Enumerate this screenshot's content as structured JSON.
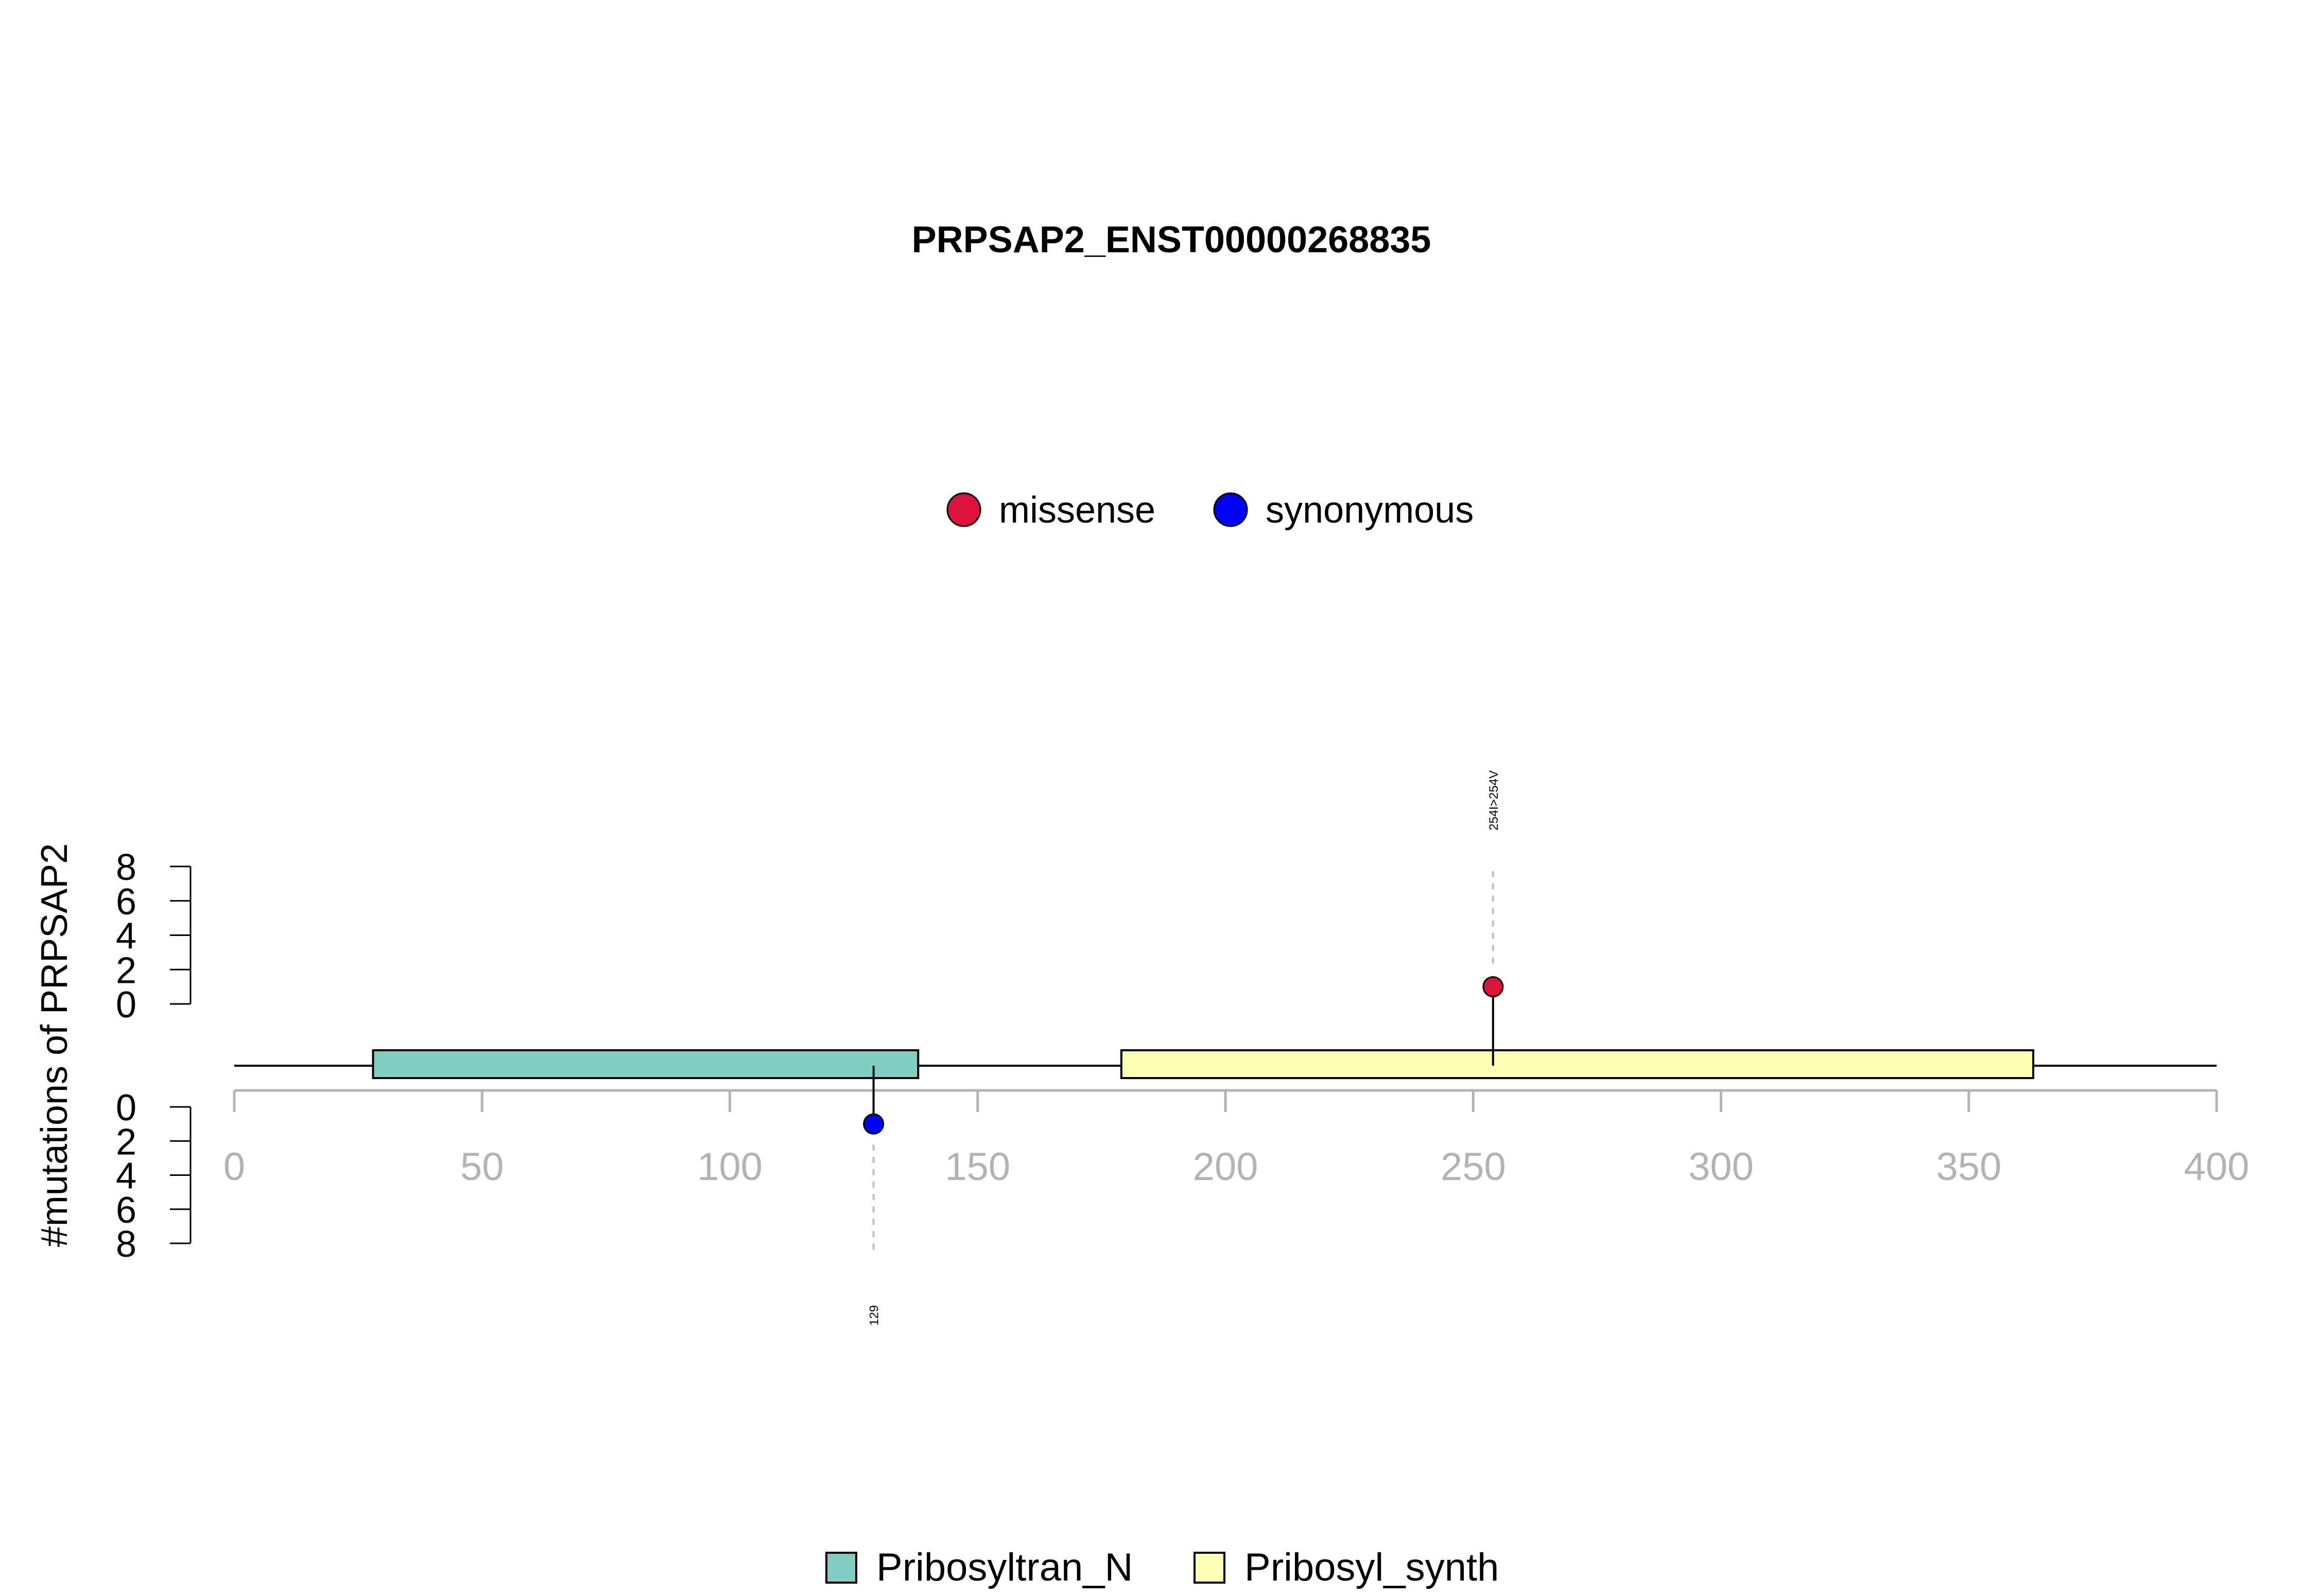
{
  "chart_data": {
    "type": "lollipop",
    "title": "PRPSAP2_ENST00000268835",
    "ylabel": "#mutations of PRPSAP2",
    "x_range": [
      0,
      400
    ],
    "x_ticks": [
      "0",
      "50",
      "100",
      "150",
      "200",
      "250",
      "300",
      "350",
      "400"
    ],
    "y_upper_ticks": [
      "0",
      "2",
      "4",
      "6",
      "8"
    ],
    "y_lower_ticks": [
      "0",
      "2",
      "4",
      "6",
      "8"
    ],
    "y_range": [
      0,
      8
    ],
    "protein_length": 400,
    "mutation_legend": [
      {
        "label": "missense",
        "color": "#dc143c"
      },
      {
        "label": "synonymous",
        "color": "#0000ff"
      }
    ],
    "domain_legend": [
      {
        "label": "Pribosyltran_N",
        "color": "#80cdc1"
      },
      {
        "label": "Pribosyl_synth",
        "color": "#ffffb3"
      }
    ],
    "domains": [
      {
        "name": "Pribosyltran_N",
        "start": 28,
        "end": 138,
        "color": "#80cdc1"
      },
      {
        "name": "Pribosyl_synth",
        "start": 179,
        "end": 363,
        "color": "#ffffb3"
      }
    ],
    "mutations": [
      {
        "position": 254,
        "count": 1,
        "side": "upper",
        "type": "missense",
        "label": "254I>254V",
        "color": "#dc143c"
      },
      {
        "position": 129,
        "count": 1,
        "side": "lower",
        "type": "synonymous",
        "label": "129",
        "color": "#0000ff"
      }
    ],
    "axis_color": "#b3b3b3"
  }
}
